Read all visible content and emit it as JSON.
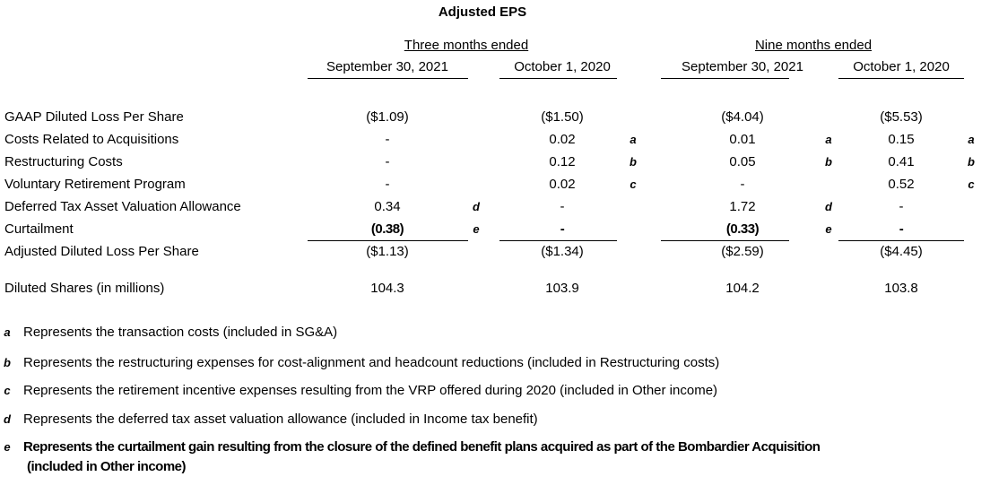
{
  "title": "Adjusted EPS",
  "groups": [
    "Three months ended",
    "Nine months ended"
  ],
  "columns": [
    "September 30, 2021",
    "October 1, 2020",
    "September 30, 2021",
    "October 1, 2020"
  ],
  "rows": [
    {
      "label": "GAAP Diluted Loss Per Share",
      "cells": [
        {
          "text": "($1.09)"
        },
        {
          "text": "($1.50)"
        },
        {
          "text": "($4.04)"
        },
        {
          "text": "($5.53)"
        }
      ]
    },
    {
      "label": "Costs Related to Acquisitions",
      "cells": [
        {
          "text": "-"
        },
        {
          "text": "0.02",
          "note": "a"
        },
        {
          "text": "0.01",
          "note": "a"
        },
        {
          "text": "0.15",
          "note": "a"
        }
      ]
    },
    {
      "label": "Restructuring Costs",
      "cells": [
        {
          "text": "-"
        },
        {
          "text": "0.12",
          "note": "b"
        },
        {
          "text": "0.05",
          "note": "b"
        },
        {
          "text": "0.41",
          "note": "b"
        }
      ]
    },
    {
      "label": "Voluntary Retirement Program",
      "cells": [
        {
          "text": "-"
        },
        {
          "text": "0.02",
          "note": "c"
        },
        {
          "text": "-"
        },
        {
          "text": "0.52",
          "note": "c"
        }
      ]
    },
    {
      "label": "Deferred Tax Asset Valuation Allowance",
      "cells": [
        {
          "text": "0.34",
          "note": "d"
        },
        {
          "text": "-"
        },
        {
          "text": "1.72",
          "note": "d"
        },
        {
          "text": "-"
        }
      ]
    },
    {
      "label": "Curtailment",
      "bold": true,
      "cells": [
        {
          "text": "(0.38)",
          "note": "e"
        },
        {
          "text": "-"
        },
        {
          "text": "(0.33)",
          "note": "e"
        },
        {
          "text": "-"
        }
      ]
    },
    {
      "label": "Adjusted Diluted Loss Per Share",
      "cells": [
        {
          "text": "($1.13)"
        },
        {
          "text": "($1.34)"
        },
        {
          "text": "($2.59)"
        },
        {
          "text": "($4.45)"
        }
      ]
    },
    {
      "label": "Diluted Shares (in millions)",
      "cells": [
        {
          "text": "104.3"
        },
        {
          "text": "103.9"
        },
        {
          "text": "104.2"
        },
        {
          "text": "103.8"
        }
      ]
    }
  ],
  "footnotes": [
    {
      "key": "a",
      "lines": [
        "Represents the transaction costs (included in SG&A)"
      ]
    },
    {
      "key": "b",
      "lines": [
        "Represents the restructuring expenses for cost-alignment and headcount reductions (included in Restructuring costs)"
      ]
    },
    {
      "key": "c",
      "lines": [
        "Represents the retirement incentive expenses resulting from the VRP offered during 2020 (included in Other income)"
      ]
    },
    {
      "key": "d",
      "lines": [
        "Represents the deferred tax asset valuation allowance (included in Income tax benefit)"
      ]
    },
    {
      "key": "e",
      "bold": true,
      "lines": [
        "Represents the curtailment gain resulting from the closure of the defined benefit plans acquired as part of the Bombardier Acquisition",
        "(included in Other income)"
      ]
    }
  ]
}
